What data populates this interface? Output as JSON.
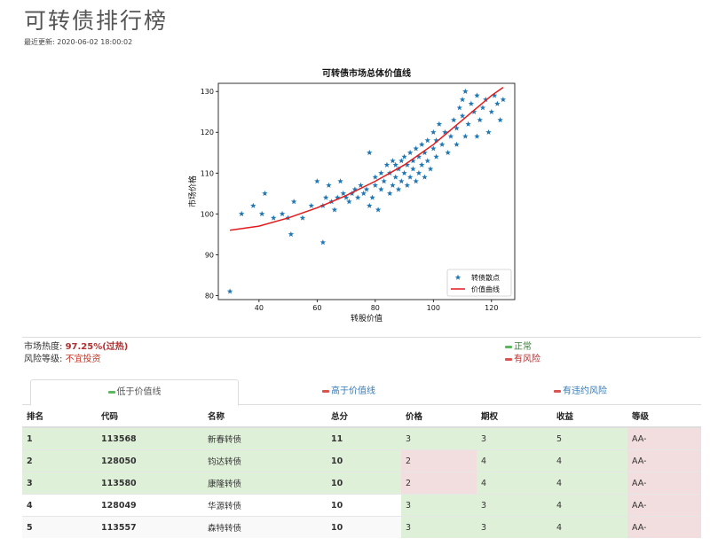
{
  "page": {
    "title": "可转债排行榜",
    "update_label": "最近更新:",
    "update_time": "2020-06-02 18:00:02"
  },
  "chart_data": {
    "type": "scatter",
    "title": "可转债市场总体价值线",
    "xlabel": "转股价值",
    "ylabel": "市场价格",
    "xlim": [
      26,
      128
    ],
    "ylim": [
      79,
      132
    ],
    "xticks": [
      40,
      60,
      80,
      100,
      120
    ],
    "yticks": [
      80,
      90,
      100,
      110,
      120,
      130
    ],
    "legend_position": "lower-right",
    "series": [
      {
        "name": "转债散点",
        "kind": "scatter",
        "marker": "star",
        "color": "#1f77b4",
        "points": [
          [
            30,
            81
          ],
          [
            34,
            100
          ],
          [
            38,
            102
          ],
          [
            41,
            100
          ],
          [
            42,
            105
          ],
          [
            45,
            99
          ],
          [
            48,
            100
          ],
          [
            50,
            99
          ],
          [
            51,
            95
          ],
          [
            52,
            103
          ],
          [
            55,
            99
          ],
          [
            58,
            102
          ],
          [
            60,
            108
          ],
          [
            62,
            93
          ],
          [
            62,
            102
          ],
          [
            63,
            104
          ],
          [
            64,
            107
          ],
          [
            65,
            103
          ],
          [
            66,
            101
          ],
          [
            67,
            104
          ],
          [
            68,
            108
          ],
          [
            69,
            105
          ],
          [
            70,
            104
          ],
          [
            71,
            103
          ],
          [
            72,
            105
          ],
          [
            73,
            106
          ],
          [
            74,
            104
          ],
          [
            75,
            107
          ],
          [
            76,
            105
          ],
          [
            77,
            106
          ],
          [
            78,
            115
          ],
          [
            78,
            102
          ],
          [
            79,
            104
          ],
          [
            80,
            107
          ],
          [
            80,
            109
          ],
          [
            81,
            101
          ],
          [
            82,
            106
          ],
          [
            82,
            110
          ],
          [
            83,
            108
          ],
          [
            84,
            112
          ],
          [
            85,
            105
          ],
          [
            85,
            110
          ],
          [
            86,
            107
          ],
          [
            86,
            113
          ],
          [
            87,
            109
          ],
          [
            87,
            112
          ],
          [
            88,
            106
          ],
          [
            88,
            111
          ],
          [
            89,
            113
          ],
          [
            89,
            108
          ],
          [
            90,
            110
          ],
          [
            90,
            114
          ],
          [
            91,
            107
          ],
          [
            91,
            112
          ],
          [
            92,
            109
          ],
          [
            92,
            115
          ],
          [
            93,
            111
          ],
          [
            93,
            113
          ],
          [
            94,
            108
          ],
          [
            94,
            116
          ],
          [
            95,
            110
          ],
          [
            95,
            114
          ],
          [
            96,
            112
          ],
          [
            96,
            117
          ],
          [
            97,
            109
          ],
          [
            97,
            115
          ],
          [
            98,
            113
          ],
          [
            98,
            118
          ],
          [
            99,
            111
          ],
          [
            100,
            116
          ],
          [
            100,
            120
          ],
          [
            101,
            114
          ],
          [
            101,
            118
          ],
          [
            102,
            122
          ],
          [
            103,
            117
          ],
          [
            104,
            120
          ],
          [
            105,
            115
          ],
          [
            106,
            119
          ],
          [
            107,
            123
          ],
          [
            108,
            121
          ],
          [
            108,
            117
          ],
          [
            109,
            126
          ],
          [
            110,
            128
          ],
          [
            110,
            124
          ],
          [
            111,
            130
          ],
          [
            111,
            119
          ],
          [
            112,
            122
          ],
          [
            113,
            127
          ],
          [
            114,
            125
          ],
          [
            115,
            129
          ],
          [
            115,
            119
          ],
          [
            116,
            123
          ],
          [
            117,
            126
          ],
          [
            118,
            128
          ],
          [
            119,
            120
          ],
          [
            120,
            125
          ],
          [
            121,
            129
          ],
          [
            122,
            127
          ],
          [
            123,
            123
          ],
          [
            124,
            128
          ]
        ]
      },
      {
        "name": "价值曲线",
        "kind": "line",
        "color": "#e31a1c",
        "points": [
          [
            30,
            96
          ],
          [
            40,
            97
          ],
          [
            50,
            99
          ],
          [
            60,
            101.5
          ],
          [
            70,
            104.5
          ],
          [
            80,
            108
          ],
          [
            90,
            112
          ],
          [
            100,
            117
          ],
          [
            110,
            123
          ],
          [
            120,
            129
          ],
          [
            124,
            131
          ]
        ]
      }
    ]
  },
  "status": {
    "heat_label": "市场热度:",
    "heat_value": "97.25%(过热)",
    "risk_label": "风险等级:",
    "risk_value": "不宜投资",
    "legend_ok": "正常",
    "legend_risk": "有风险"
  },
  "tabs": [
    {
      "label": "低于价值线",
      "color": "green"
    },
    {
      "label": "高于价值线",
      "color": "red"
    },
    {
      "label": "有违约风险",
      "color": "red"
    }
  ],
  "table": {
    "headers": [
      "排名",
      "代码",
      "名称",
      "总分",
      "价格",
      "期权",
      "收益",
      "等级"
    ],
    "rows": [
      {
        "rank": "1",
        "code": "113568",
        "name": "新春转债",
        "score": "11",
        "price": "3",
        "option": "3",
        "yield": "5",
        "grade": "AA-"
      },
      {
        "rank": "2",
        "code": "128050",
        "name": "钧达转债",
        "score": "10",
        "price": "2",
        "option": "4",
        "yield": "4",
        "grade": "AA-"
      },
      {
        "rank": "3",
        "code": "113580",
        "name": "康隆转债",
        "score": "10",
        "price": "2",
        "option": "4",
        "yield": "4",
        "grade": "AA-"
      },
      {
        "rank": "4",
        "code": "128049",
        "name": "华源转债",
        "score": "10",
        "price": "3",
        "option": "3",
        "yield": "4",
        "grade": "AA-"
      },
      {
        "rank": "5",
        "code": "113557",
        "name": "森特转债",
        "score": "10",
        "price": "3",
        "option": "3",
        "yield": "4",
        "grade": "AA-"
      }
    ]
  }
}
